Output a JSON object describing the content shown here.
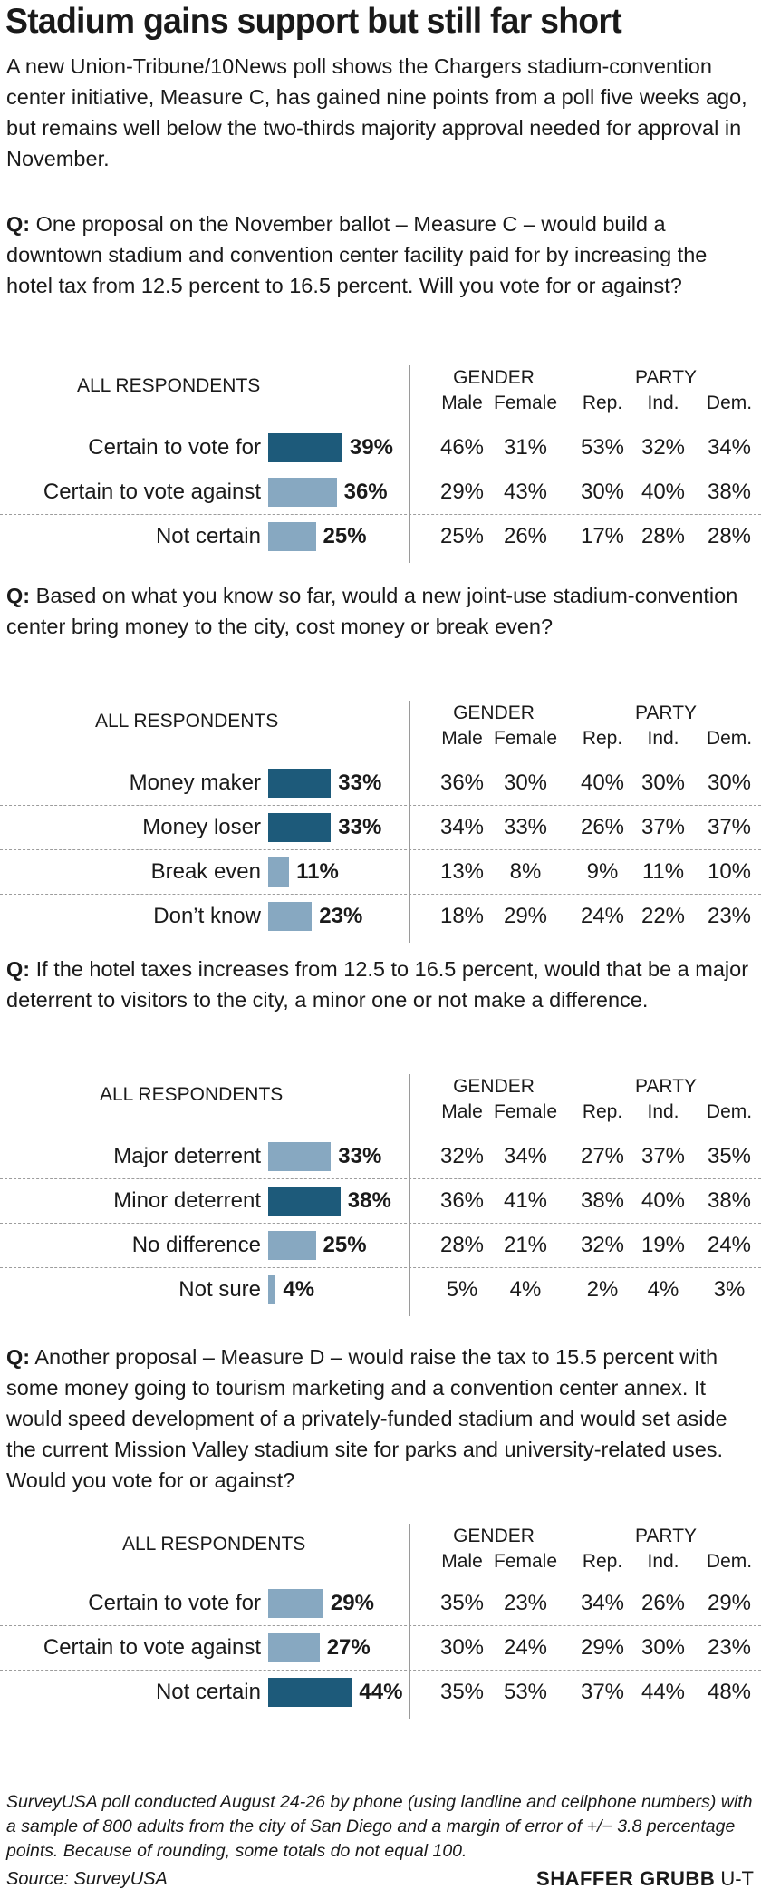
{
  "title": "Stadium gains support but still far short",
  "intro": "A new Union-Tribune/10News poll shows the Chargers stadium-convention center initiative, Measure C, has gained nine points from a poll five weeks ago, but remains well below the two-thirds majority approval needed for approval in November.",
  "headers": {
    "all": "ALL RESPONDENTS",
    "gender": "GENDER",
    "party": "PARTY",
    "cols": [
      "Male",
      "Female",
      "Rep.",
      "Ind.",
      "Dem."
    ]
  },
  "colors": {
    "dark": "#1d5a7a",
    "light": "#87a8c1"
  },
  "chart_data": [
    {
      "type": "bar",
      "question_prefix": "Q:",
      "question": "One proposal on the November ballot – Measure C – would build a downtown stadium and convention center facility paid for by increasing the hotel tax from 12.5 percent to 16.5 percent. Will you vote for or against?",
      "rows": [
        {
          "label": "Certain to vote for",
          "value": 39,
          "pct": "39%",
          "highlight": true,
          "cells": [
            "46%",
            "31%",
            "53%",
            "32%",
            "34%"
          ]
        },
        {
          "label": "Certain to vote against",
          "value": 36,
          "pct": "36%",
          "highlight": false,
          "cells": [
            "29%",
            "43%",
            "30%",
            "40%",
            "38%"
          ]
        },
        {
          "label": "Not certain",
          "value": 25,
          "pct": "25%",
          "highlight": false,
          "cells": [
            "25%",
            "26%",
            "17%",
            "28%",
            "28%"
          ]
        }
      ]
    },
    {
      "type": "bar",
      "question_prefix": "Q:",
      "question": "Based on what you know so far, would a new joint-use stadium-convention center bring money to the city, cost money or break even?",
      "rows": [
        {
          "label": "Money maker",
          "value": 33,
          "pct": "33%",
          "highlight": true,
          "cells": [
            "36%",
            "30%",
            "40%",
            "30%",
            "30%"
          ]
        },
        {
          "label": "Money loser",
          "value": 33,
          "pct": "33%",
          "highlight": true,
          "cells": [
            "34%",
            "33%",
            "26%",
            "37%",
            "37%"
          ]
        },
        {
          "label": "Break even",
          "value": 11,
          "pct": "11%",
          "highlight": false,
          "cells": [
            "13%",
            "8%",
            "9%",
            "11%",
            "10%"
          ]
        },
        {
          "label": "Don’t know",
          "value": 23,
          "pct": "23%",
          "highlight": false,
          "cells": [
            "18%",
            "29%",
            "24%",
            "22%",
            "23%"
          ]
        }
      ]
    },
    {
      "type": "bar",
      "question_prefix": "Q:",
      "question": "If the hotel taxes increases from 12.5 to 16.5 percent, would that be a major deterrent to visitors to the city, a minor one or not make a difference.",
      "rows": [
        {
          "label": "Major deterrent",
          "value": 33,
          "pct": "33%",
          "highlight": false,
          "cells": [
            "32%",
            "34%",
            "27%",
            "37%",
            "35%"
          ]
        },
        {
          "label": "Minor deterrent",
          "value": 38,
          "pct": "38%",
          "highlight": true,
          "cells": [
            "36%",
            "41%",
            "38%",
            "40%",
            "38%"
          ]
        },
        {
          "label": "No difference",
          "value": 25,
          "pct": "25%",
          "highlight": false,
          "cells": [
            "28%",
            "21%",
            "32%",
            "19%",
            "24%"
          ]
        },
        {
          "label": "Not sure",
          "value": 4,
          "pct": "4%",
          "highlight": false,
          "cells": [
            "5%",
            "4%",
            "2%",
            "4%",
            "3%"
          ]
        }
      ]
    },
    {
      "type": "bar",
      "question_prefix": "Q:",
      "question": "Another proposal – Measure D – would raise the tax to 15.5 percent with some money going to tourism marketing and a convention center annex. It would speed development of a privately-funded stadium and would set aside the current Mission Valley stadium site for parks and university-related uses. Would you vote for or against?",
      "rows": [
        {
          "label": "Certain to vote for",
          "value": 29,
          "pct": "29%",
          "highlight": false,
          "cells": [
            "35%",
            "23%",
            "34%",
            "26%",
            "29%"
          ]
        },
        {
          "label": "Certain to vote against",
          "value": 27,
          "pct": "27%",
          "highlight": false,
          "cells": [
            "30%",
            "24%",
            "29%",
            "30%",
            "23%"
          ]
        },
        {
          "label": "Not certain",
          "value": 44,
          "pct": "44%",
          "highlight": true,
          "cells": [
            "35%",
            "53%",
            "37%",
            "44%",
            "48%"
          ]
        }
      ]
    }
  ],
  "footnote": "SurveyUSA poll conducted August 24-26 by phone (using landline and cellphone numbers) with a sample of 800 adults from the city of San Diego and a margin of error of +/− 3.8 percentage points. Because of rounding, some totals do not equal 100.",
  "source": "Source: SurveyUSA",
  "credit": {
    "name": "SHAFFER GRUBB",
    "org": "U-T"
  }
}
